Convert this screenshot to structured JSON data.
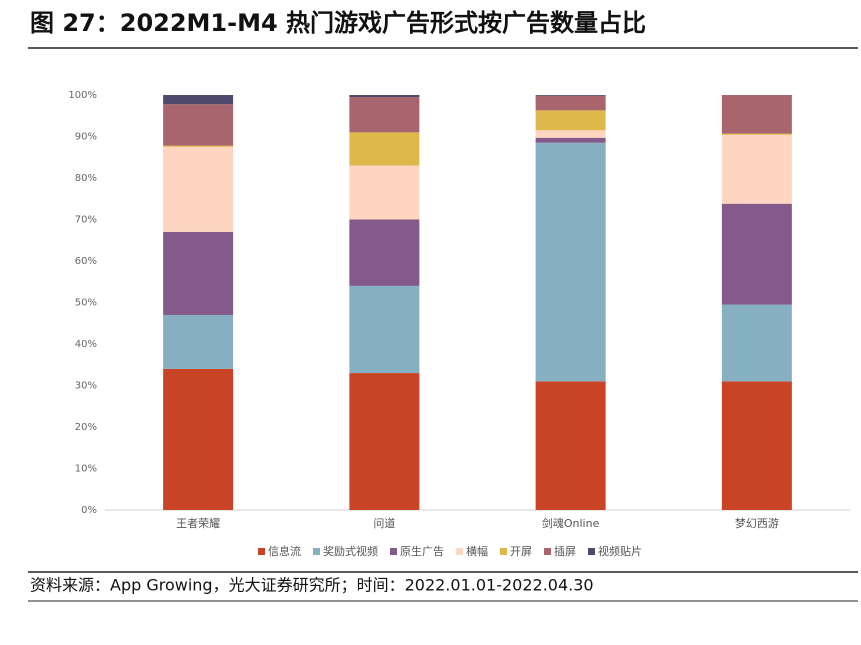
{
  "chart_data": {
    "type": "stacked_bar",
    "title": "图 27：2022M1-M4 热门游戏广告形式按广告数量占比",
    "source": "资料来源：App Growing，光大证券研究所；时间：2022.01.01-2022.04.30",
    "categories": [
      "王者荣耀",
      "问道",
      "剑魂Online",
      "梦幻西游"
    ],
    "series": [
      {
        "name": "信息流",
        "color": "#c94426",
        "values": [
          34,
          33,
          31,
          31
        ]
      },
      {
        "name": "奖励式视频",
        "color": "#87afc2",
        "values": [
          13,
          21,
          57.5,
          18.5
        ]
      },
      {
        "name": "原生广告",
        "color": "#845a8a",
        "values": [
          20,
          16,
          1.2,
          24.3
        ]
      },
      {
        "name": "横幅",
        "color": "#fdd5c1",
        "values": [
          20.5,
          13,
          1.8,
          16.6
        ]
      },
      {
        "name": "开屏",
        "color": "#dfb84b",
        "values": [
          0.3,
          8,
          4.8,
          0.3
        ]
      },
      {
        "name": "插屏",
        "color": "#a8656e",
        "values": [
          10,
          8.5,
          3.5,
          9.3
        ]
      },
      {
        "name": "视频贴片",
        "color": "#4f4a6b",
        "values": [
          2.2,
          0.5,
          0.2,
          0
        ]
      }
    ],
    "ylim": [
      0,
      100
    ],
    "yticks": [
      {
        "value": 0,
        "label": "0%"
      },
      {
        "value": 10,
        "label": "10%"
      },
      {
        "value": 20,
        "label": "20%"
      },
      {
        "value": 30,
        "label": "30%"
      },
      {
        "value": 40,
        "label": "40%"
      },
      {
        "value": 50,
        "label": "50%"
      },
      {
        "value": 60,
        "label": "60%"
      },
      {
        "value": 70,
        "label": "70%"
      },
      {
        "value": 80,
        "label": "80%"
      },
      {
        "value": 90,
        "label": "90%"
      },
      {
        "value": 100,
        "label": "100%"
      }
    ],
    "legend": "bottom"
  }
}
